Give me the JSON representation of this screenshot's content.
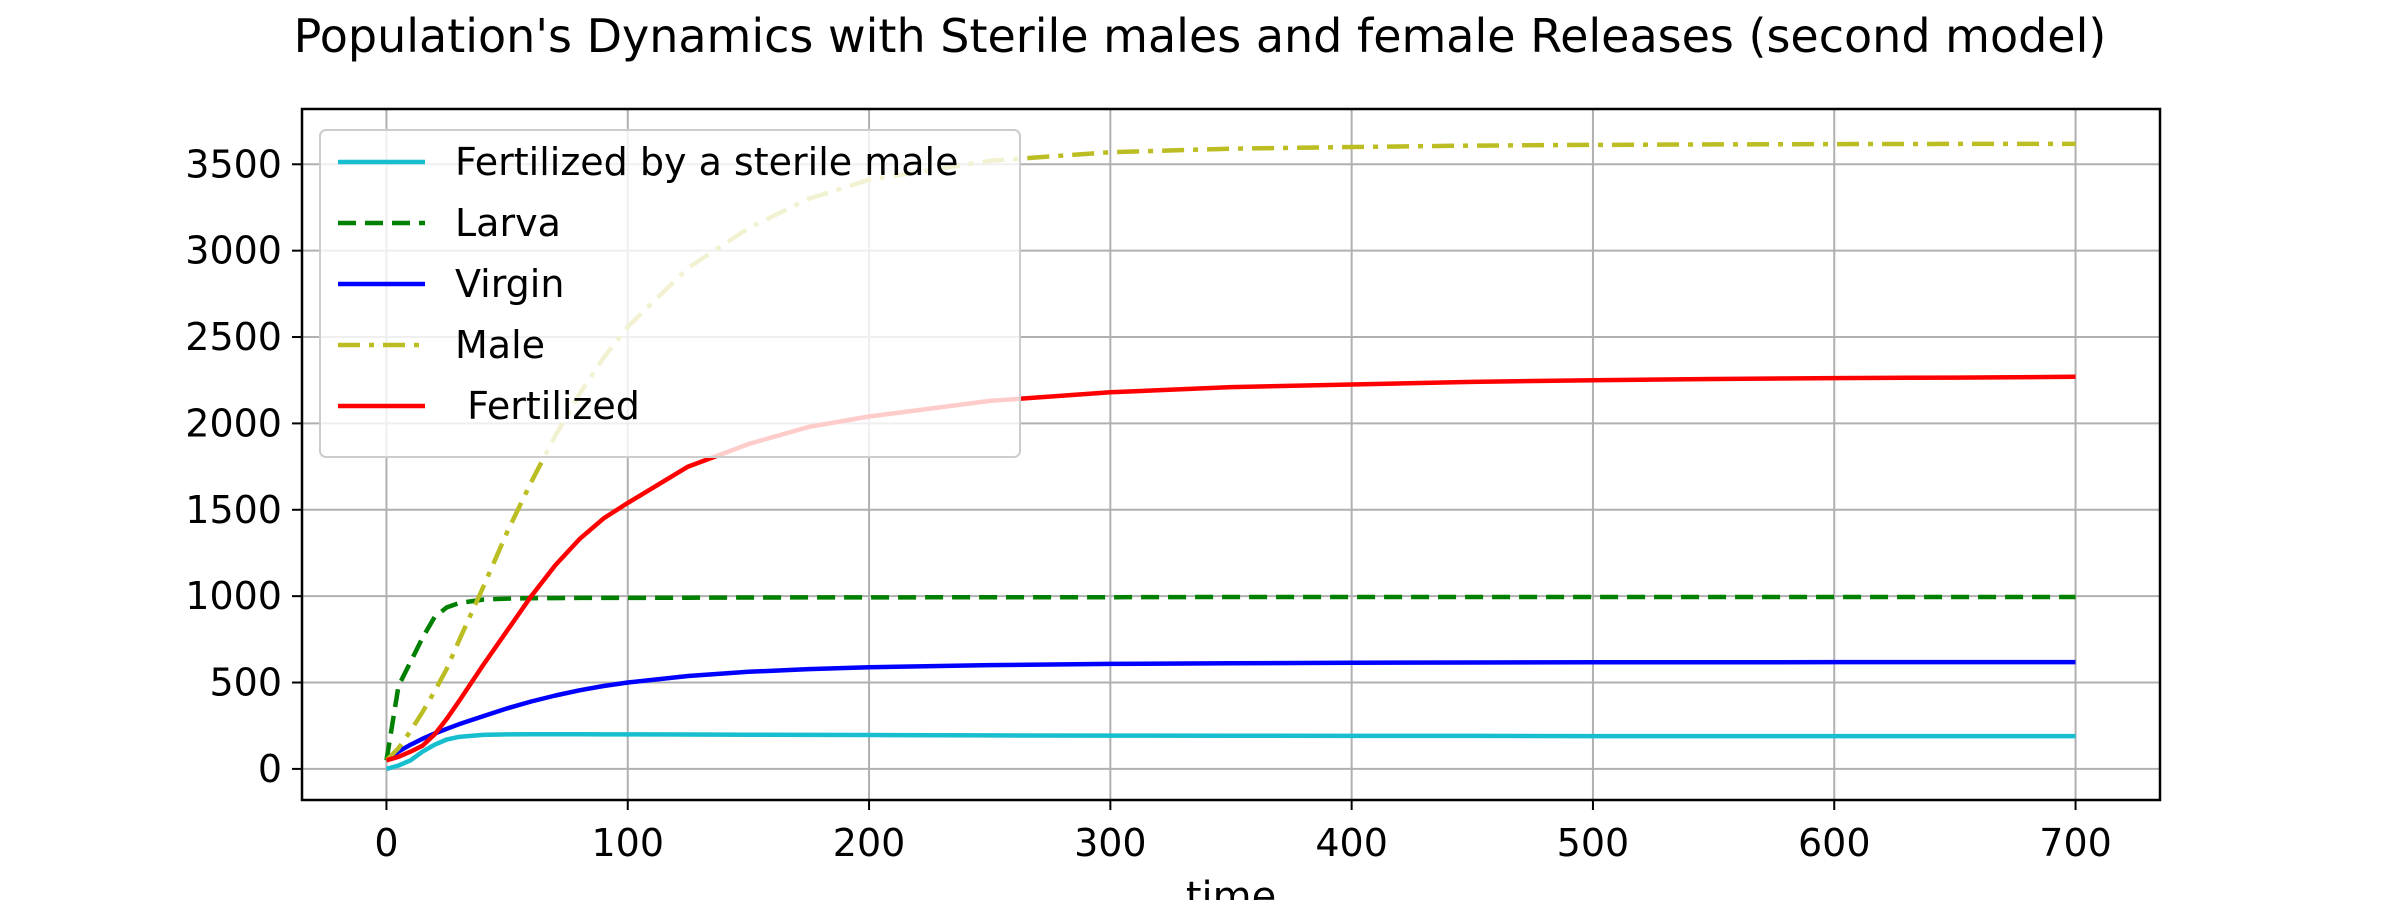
{
  "chart_data": {
    "type": "line",
    "title": "Population's Dynamics with Sterile males and female Releases (second model)",
    "xlabel": "time",
    "ylabel": "",
    "xlim": [
      -35,
      735
    ],
    "ylim": [
      -180,
      3820
    ],
    "x_ticks": [
      0,
      100,
      200,
      300,
      400,
      500,
      600,
      700
    ],
    "y_ticks": [
      0,
      500,
      1000,
      1500,
      2000,
      2500,
      3000,
      3500
    ],
    "grid": true,
    "legend_position": "top-left",
    "x": [
      0,
      5,
      10,
      15,
      20,
      25,
      30,
      40,
      50,
      60,
      70,
      80,
      90,
      100,
      125,
      150,
      175,
      200,
      250,
      300,
      350,
      400,
      450,
      500,
      550,
      600,
      650,
      700
    ],
    "series": [
      {
        "name": "Fertilized by a sterile male",
        "color": "#17becf",
        "dash": "solid",
        "values": [
          0,
          20,
          50,
          100,
          140,
          170,
          185,
          197,
          200,
          201,
          201,
          201,
          200,
          200,
          199,
          198,
          197,
          196,
          194,
          193,
          192,
          191,
          191,
          190,
          190,
          190,
          190,
          190
        ]
      },
      {
        "name": "Larva",
        "color": "#008000",
        "dash": "dashed",
        "values": [
          50,
          480,
          620,
          760,
          880,
          935,
          960,
          980,
          986,
          988,
          989,
          990,
          990,
          990,
          991,
          992,
          993,
          993,
          994,
          994,
          995,
          995,
          995,
          995,
          995,
          995,
          995,
          995
        ]
      },
      {
        "name": "Virgin",
        "color": "#0000ff",
        "dash": "solid",
        "values": [
          50,
          100,
          140,
          175,
          205,
          232,
          258,
          305,
          350,
          390,
          425,
          455,
          480,
          500,
          538,
          562,
          578,
          588,
          601,
          608,
          612,
          614,
          616,
          617,
          617,
          618,
          618,
          618
        ]
      },
      {
        "name": "Male",
        "color": "#bcbd22",
        "dash": "dashdot",
        "values": [
          50,
          120,
          220,
          330,
          450,
          580,
          740,
          1050,
          1370,
          1660,
          1930,
          2170,
          2380,
          2560,
          2900,
          3130,
          3300,
          3410,
          3520,
          3570,
          3590,
          3600,
          3608,
          3612,
          3615,
          3617,
          3618,
          3618
        ]
      },
      {
        "name": " Fertilized",
        "color": "#ff0000",
        "dash": "solid",
        "values": [
          50,
          70,
          100,
          135,
          200,
          290,
          390,
          600,
          800,
          1000,
          1180,
          1330,
          1450,
          1540,
          1750,
          1880,
          1980,
          2040,
          2130,
          2180,
          2210,
          2225,
          2240,
          2250,
          2257,
          2262,
          2265,
          2270
        ]
      }
    ]
  }
}
